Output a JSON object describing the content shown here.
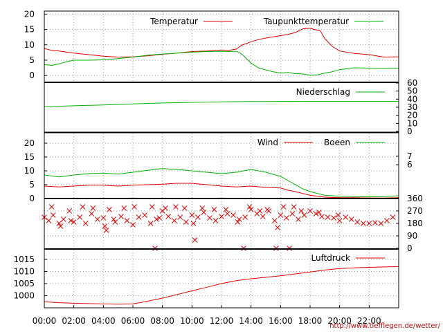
{
  "chart_data": {
    "type": "line",
    "url": "http://www.tiefflegen.de/wetter/",
    "x_ticks": [
      "00:00",
      "02:00",
      "04:00",
      "06:00",
      "08:00",
      "10:00",
      "12:00",
      "14:00",
      "16:00",
      "18:00",
      "20:00",
      "22:00"
    ],
    "colors": {
      "red": "#e00000",
      "green": "#00b000"
    },
    "panels": [
      {
        "id": "temperature",
        "ylim": [
          -2,
          21
        ],
        "yticks_left": [
          "0",
          "5",
          "10",
          "15",
          "20"
        ],
        "yticks_left_values": [
          0,
          5,
          10,
          15,
          20
        ],
        "legend": [
          "Temperatur",
          "Taupunkttemperatur"
        ],
        "series": [
          {
            "name": "Temperatur",
            "color": "red",
            "x": [
              0,
              0.5,
              1,
              2,
              3,
              4,
              5,
              6,
              7,
              8,
              9,
              10,
              11,
              12,
              12.5,
              13,
              13.4,
              13.7,
              14,
              14.5,
              15,
              15.5,
              16,
              16.5,
              17,
              17.5,
              18,
              18.3,
              18.7,
              19,
              19.5,
              20,
              21,
              22,
              22.5,
              23,
              24
            ],
            "y": [
              8.8,
              8.2,
              8.0,
              7.3,
              6.8,
              6.3,
              6.0,
              6.1,
              6.4,
              6.9,
              7.3,
              7.8,
              8.0,
              8.3,
              8.2,
              8.6,
              10.0,
              10.4,
              11.0,
              11.7,
              12.2,
              12.6,
              13.0,
              13.4,
              14.0,
              15.2,
              15.4,
              15.0,
              14.5,
              12.0,
              9.5,
              8.0,
              7.2,
              6.8,
              6.4,
              6.0,
              6.1
            ]
          },
          {
            "name": "Taupunkttemperatur",
            "color": "green",
            "x": [
              0,
              0.5,
              1,
              1.5,
              2,
              3,
              4,
              5,
              6,
              7,
              8,
              9,
              10,
              11,
              12,
              12.5,
              13,
              13.3,
              13.6,
              14,
              14.5,
              15,
              15.5,
              16,
              16.5,
              17,
              17.5,
              18,
              18.5,
              19,
              19.5,
              20,
              21,
              22,
              23,
              24
            ],
            "y": [
              3.6,
              3.3,
              3.8,
              4.5,
              5.0,
              5.0,
              5.1,
              5.5,
              6.0,
              6.6,
              7.0,
              7.3,
              7.6,
              7.8,
              7.9,
              7.8,
              7.9,
              7.2,
              6.0,
              4.0,
              2.5,
              1.8,
              1.2,
              0.8,
              1.0,
              0.6,
              0.5,
              0.1,
              0.2,
              0.8,
              1.2,
              1.9,
              2.5,
              2.4,
              2.3,
              2.3
            ]
          }
        ]
      },
      {
        "id": "precipitation",
        "ylim": [
          0,
          60
        ],
        "yticks_right": [
          "0",
          "10",
          "20",
          "30",
          "40",
          "50",
          "60"
        ],
        "yticks_right_values": [
          0,
          10,
          20,
          30,
          40,
          50,
          60
        ],
        "legend": [
          "Niederschlag"
        ],
        "series": [
          {
            "name": "Niederschlag",
            "color": "green",
            "x": [
              0,
              2,
              4,
              6,
              8,
              10,
              12,
              14,
              16,
              18,
              20,
              22,
              24
            ],
            "y": [
              30.5,
              31.8,
              32.8,
              34.0,
              35.2,
              36.0,
              36.6,
              37.0,
              37.2,
              37.3,
              37.3,
              37.3,
              37.3
            ]
          }
        ]
      },
      {
        "id": "wind",
        "ylim": [
          0,
          23.5
        ],
        "yticks_left": [
          "0",
          "5",
          "10",
          "15",
          "20"
        ],
        "yticks_left_values": [
          0,
          5,
          10,
          15,
          20
        ],
        "yticks_right": [
          "6",
          "7"
        ],
        "yticks_right_values": [
          12.2,
          15.3
        ],
        "legend": [
          "Wind",
          "Boeen"
        ],
        "series": [
          {
            "name": "Wind",
            "color": "red",
            "x": [
              0,
              1,
              2,
              3,
              4,
              5,
              6,
              7,
              8,
              9,
              10,
              11,
              12,
              13,
              14,
              15,
              16,
              16.5,
              17,
              17.5,
              18,
              18.5,
              19,
              20,
              21,
              22,
              23,
              24
            ],
            "y": [
              4.5,
              4.2,
              4.5,
              4.8,
              4.8,
              4.5,
              4.8,
              5.0,
              5.2,
              5.5,
              5.5,
              5.0,
              4.5,
              4.2,
              4.5,
              4.0,
              3.8,
              3.0,
              2.5,
              1.8,
              1.2,
              0.8,
              0.5,
              0.3,
              0.3,
              0.2,
              0.2,
              0.3
            ]
          },
          {
            "name": "Boeen",
            "color": "green",
            "x": [
              0,
              1,
              2,
              3,
              4,
              5,
              6,
              7,
              8,
              9,
              10,
              11,
              12,
              13,
              14,
              15,
              16,
              16.5,
              17,
              17.5,
              18,
              18.5,
              19,
              20,
              21,
              22,
              23,
              24
            ],
            "y": [
              8.5,
              7.8,
              8.5,
              9.0,
              9.2,
              8.8,
              9.5,
              10.2,
              10.8,
              10.5,
              10.0,
              9.5,
              9.0,
              9.5,
              10.5,
              9.5,
              8.0,
              6.5,
              5.0,
              3.5,
              2.5,
              1.8,
              1.2,
              0.8,
              0.7,
              0.6,
              0.7,
              1.0
            ]
          }
        ]
      },
      {
        "id": "wind_direction",
        "type": "scatter",
        "ylim": [
          0,
          360
        ],
        "yticks_right": [
          "0",
          "90",
          "180",
          "270",
          "360"
        ],
        "yticks_right_values": [
          0,
          90,
          180,
          270,
          360
        ],
        "series": [
          {
            "name": "",
            "color": "red",
            "x": [
              0,
              0.3,
              0.6,
              1,
              1.3,
              1.7,
              2,
              2.4,
              2.8,
              3.2,
              3.6,
              4,
              4.4,
              4.8,
              5.2,
              5.6,
              6,
              6.4,
              6.8,
              7.2,
              7.6,
              8,
              8.4,
              8.8,
              9.2,
              9.6,
              10,
              10.4,
              10.8,
              11.2,
              11.6,
              12,
              12.4,
              12.8,
              13.2,
              13.6,
              14,
              14.4,
              14.8,
              15.2,
              15.6,
              16,
              16.4,
              16.8,
              17.2,
              17.6,
              18,
              18.4,
              18.8,
              19.2,
              19.6,
              20,
              20.4,
              20.8,
              21.2,
              21.6,
              22,
              22.4,
              22.8,
              23.2,
              23.6,
              1.1,
              2.6,
              4.1,
              5.4,
              7.3,
              8.2,
              9.5,
              10.7,
              12.3,
              13.9,
              15.1,
              16.2,
              17.4,
              18.6,
              19.9,
              0.5,
              3.3,
              6.1,
              8.9,
              11.5,
              14.6,
              16.9,
              1.8,
              4.7,
              7.8,
              10.1,
              13.1,
              15.8,
              7.5,
              13.5,
              15.7,
              16.6,
              10.2,
              4.2
            ],
            "y": [
              225,
              200,
              240,
              180,
              210,
              270,
              190,
              225,
              180,
              250,
              210,
              220,
              280,
              190,
              230,
              200,
              170,
              225,
              240,
              180,
              210,
              270,
              230,
              200,
              225,
              190,
              240,
              225,
              260,
              220,
              200,
              230,
              250,
              240,
              210,
              225,
              280,
              250,
              230,
              270,
              200,
              240,
              220,
              250,
              210,
              240,
              270,
              250,
              230,
              225,
              220,
              200,
              225,
              210,
              190,
              180,
              180,
              185,
              180,
              200,
              225,
              160,
              300,
              160,
              290,
              300,
              290,
              290,
              290,
              280,
              300,
              280,
              300,
              270,
              260,
              240,
              300,
              290,
              300,
              300,
              280,
              270,
              300,
              200,
              210,
              220,
              180,
              190,
              150,
              0,
              0,
              0,
              0,
              60,
              130
            ]
          }
        ]
      },
      {
        "id": "pressure",
        "ylim": [
          995,
          1019
        ],
        "yticks_left": [
          "1000",
          "1005",
          "1010",
          "1015"
        ],
        "yticks_left_values": [
          1000,
          1005,
          1010,
          1015
        ],
        "legend": [
          "Luftdruck"
        ],
        "series": [
          {
            "name": "Luftdruck",
            "color": "red",
            "x": [
              0,
              1,
              2,
              3,
              4,
              5,
              6,
              7,
              8,
              9,
              10,
              11,
              12,
              13,
              14,
              15,
              16,
              17,
              18,
              19,
              20,
              21,
              22,
              23,
              24
            ],
            "y": [
              997.5,
              997.1,
              996.9,
              996.7,
              996.6,
              996.5,
              996.6,
              997.7,
              999.0,
              1000.5,
              1002.0,
              1003.5,
              1005.0,
              1006.2,
              1007.0,
              1007.6,
              1008.2,
              1009.0,
              1009.8,
              1010.6,
              1011.2,
              1011.5,
              1011.7,
              1011.9,
              1012.0
            ]
          }
        ]
      }
    ]
  }
}
